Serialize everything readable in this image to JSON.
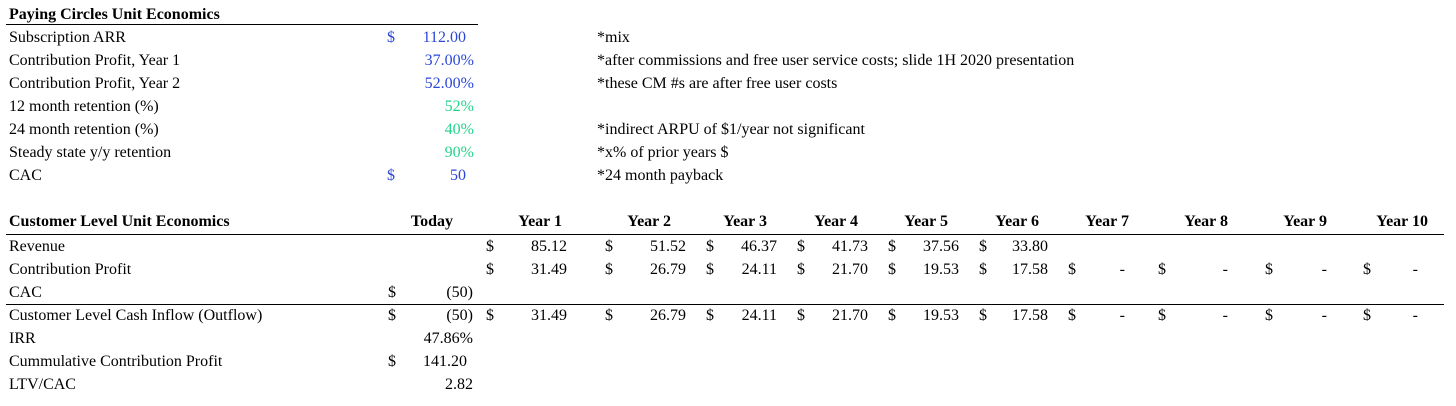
{
  "section1": {
    "title": "Paying Circles Unit Economics",
    "rows": [
      {
        "label": "Subscription ARR",
        "currency": "$",
        "value": "112.00",
        "note": "*mix",
        "color": "blue"
      },
      {
        "label": "Contribution Profit, Year 1",
        "currency": "",
        "value": "37.00%",
        "note": "*after commissions and free user service costs; slide 1H 2020 presentation",
        "color": "blue"
      },
      {
        "label": "Contribution Profit, Year 2",
        "currency": "",
        "value": "52.00%",
        "note": "*these CM #s are after free user costs",
        "color": "blue"
      },
      {
        "label": "12 month retention (%)",
        "currency": "",
        "value": "52%",
        "note": "",
        "color": "green"
      },
      {
        "label": "24 month retention (%)",
        "currency": "",
        "value": "40%",
        "note": "*indirect ARPU of $1/year not significant",
        "color": "green"
      },
      {
        "label": "Steady state y/y retention",
        "currency": "",
        "value": "90%",
        "note": "*x% of prior years $",
        "color": "green"
      },
      {
        "label": "CAC",
        "currency": "$",
        "value": "50",
        "note": "*24 month payback",
        "color": "blue"
      }
    ]
  },
  "section2": {
    "title": "Customer Level Unit Economics",
    "columns": [
      "Today",
      "Year 1",
      "Year 2",
      "Year 3",
      "Year 4",
      "Year 5",
      "Year 6",
      "Year 7",
      "Year 8",
      "Year 9",
      "Year 10"
    ],
    "rows": [
      {
        "label": "Revenue",
        "cells": [
          "",
          "85.12",
          "51.52",
          "46.37",
          "41.73",
          "37.56",
          "33.80",
          "",
          "",
          "",
          ""
        ]
      },
      {
        "label": "Contribution Profit",
        "cells": [
          "",
          "31.49",
          "26.79",
          "24.11",
          "21.70",
          "19.53",
          "17.58",
          "-",
          "-",
          "-",
          "-"
        ]
      },
      {
        "label": "CAC",
        "cells": [
          "(50)",
          "",
          "",
          "",
          "",
          "",
          "",
          "",
          "",
          "",
          ""
        ]
      },
      {
        "label": "Customer Level Cash Inflow (Outflow)",
        "cells": [
          "(50)",
          "31.49",
          "26.79",
          "24.11",
          "21.70",
          "19.53",
          "17.58",
          "-",
          "-",
          "-",
          "-"
        ]
      }
    ],
    "currency_symbol": "$",
    "summary": [
      {
        "label": "IRR",
        "currency": "",
        "value": "47.86%"
      },
      {
        "label": "Cummulative Contribution Profit",
        "currency": "$",
        "value": "141.20"
      },
      {
        "label": "LTV/CAC",
        "currency": "",
        "value": "2.82"
      }
    ]
  }
}
